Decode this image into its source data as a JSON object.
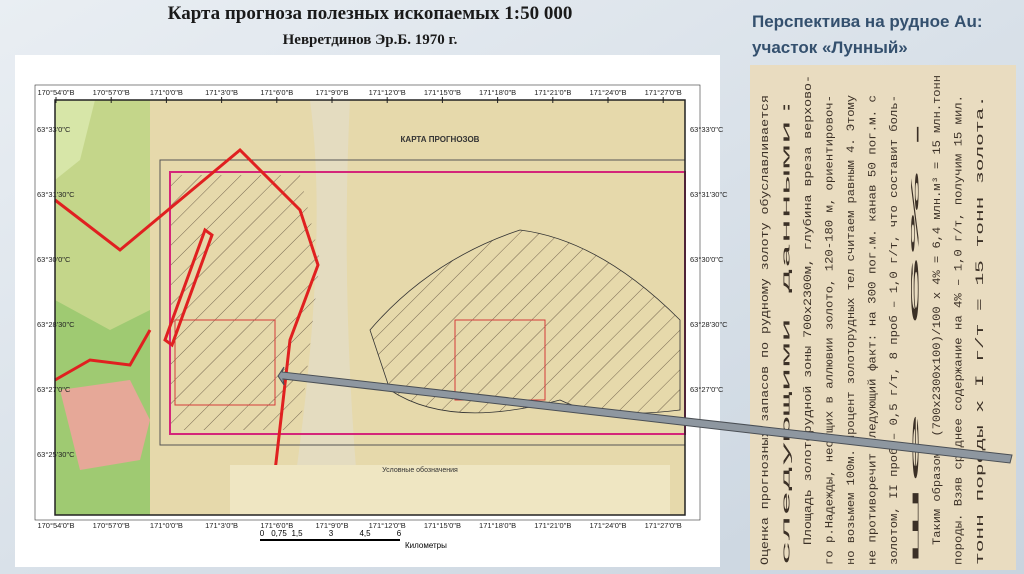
{
  "header": {
    "title": "Карта прогноза полезных ископаемых 1:50 000",
    "subtitle": "Невретдинов Эр.Б. 1970 г."
  },
  "side": {
    "heading": [
      "Перспектива на рудное Au:",
      "участок «Лунный»"
    ]
  },
  "map": {
    "lon_labels": [
      "170°54'0\"В",
      "170°57'0\"В",
      "171°0'0\"В",
      "171°3'0\"В",
      "171°6'0\"В",
      "171°9'0\"В",
      "171°12'0\"В",
      "171°15'0\"В",
      "171°18'0\"В",
      "171°21'0\"В",
      "171°24'0\"В",
      "171°27'0\"В"
    ],
    "lat_labels": [
      "63°33'0\"С",
      "63°31'30\"С",
      "63°30'0\"С",
      "63°28'30\"С",
      "63°27'0\"С",
      "63°25'30\"С"
    ],
    "inner_title": "КАРТА ПРОГНОЗОВ",
    "legend_title": "Условные обозначения",
    "scale": {
      "ticks": [
        "0",
        "0,75",
        "1,5",
        "3",
        "4,5",
        "6"
      ],
      "unit": "Километры"
    }
  },
  "document": {
    "lines": [
      "Оценка прогнозных запасов по рудному золоту обуславливается",
      "следующими данными:",
      "Площадь золоторудной зоны 700х2300м, глубина вреза верхово-",
      "го р.Надежды, несущих в аллювии золото, 120-180 м, ориентировоч-",
      "но возьмем 100м. Процент золоторудных тел считаем равным 4. Этому",
      "не противоречит следующий факт: на 300 пог.м. канав 50 пог.м. с",
      "золотом, II проб – 0,5 г/т, 8 проб – 1,0 г/т, что составит боль-",
      "ше 6%.",
      "Таким образом: (700х2300х100)/100 х 4% = 6,4 млн.м³ = 15 млн.тонн",
      "породы. Взяв среднее содержание на 4% – 1,0 г/т, получим 15 мил.",
      "тонн породы х I г/т = 15 тонн золота."
    ]
  }
}
